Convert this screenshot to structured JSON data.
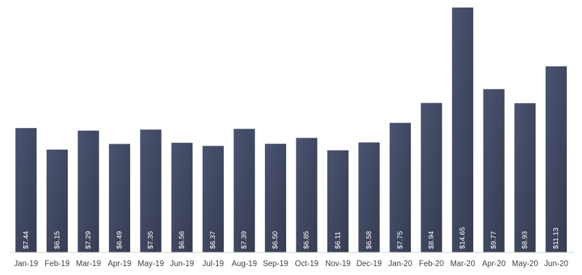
{
  "chart_data": {
    "type": "bar",
    "categories": [
      "Jan-19",
      "Feb-19",
      "Mar-19",
      "Apr-19",
      "May-19",
      "Jun-19",
      "Jul-19",
      "Aug-19",
      "Sep-19",
      "Oct-19",
      "Nov-19",
      "Dec-19",
      "Jan-20",
      "Feb-20",
      "Mar-20",
      "Apr-20",
      "May-20",
      "Jun-20"
    ],
    "values": [
      7.44,
      6.15,
      7.29,
      6.49,
      7.35,
      6.56,
      6.37,
      7.39,
      6.5,
      6.85,
      6.11,
      6.58,
      7.75,
      8.94,
      14.65,
      9.77,
      8.93,
      11.13
    ],
    "value_labels": [
      "$7.44",
      "$6.15",
      "$7.29",
      "$6.49",
      "$7.35",
      "$6.56",
      "$6.37",
      "$7.39",
      "$6.50",
      "$6.85",
      "$6.11",
      "$6.58",
      "$7.75",
      "$8.94",
      "$14.65",
      "$9.77",
      "$8.93",
      "$11.13"
    ],
    "title": "",
    "xlabel": "",
    "ylabel": "",
    "ylim": [
      0,
      14.65
    ],
    "grid": false,
    "legend": "none",
    "bar_color": "#4a5470",
    "bar_color_dark": "#363c52"
  }
}
